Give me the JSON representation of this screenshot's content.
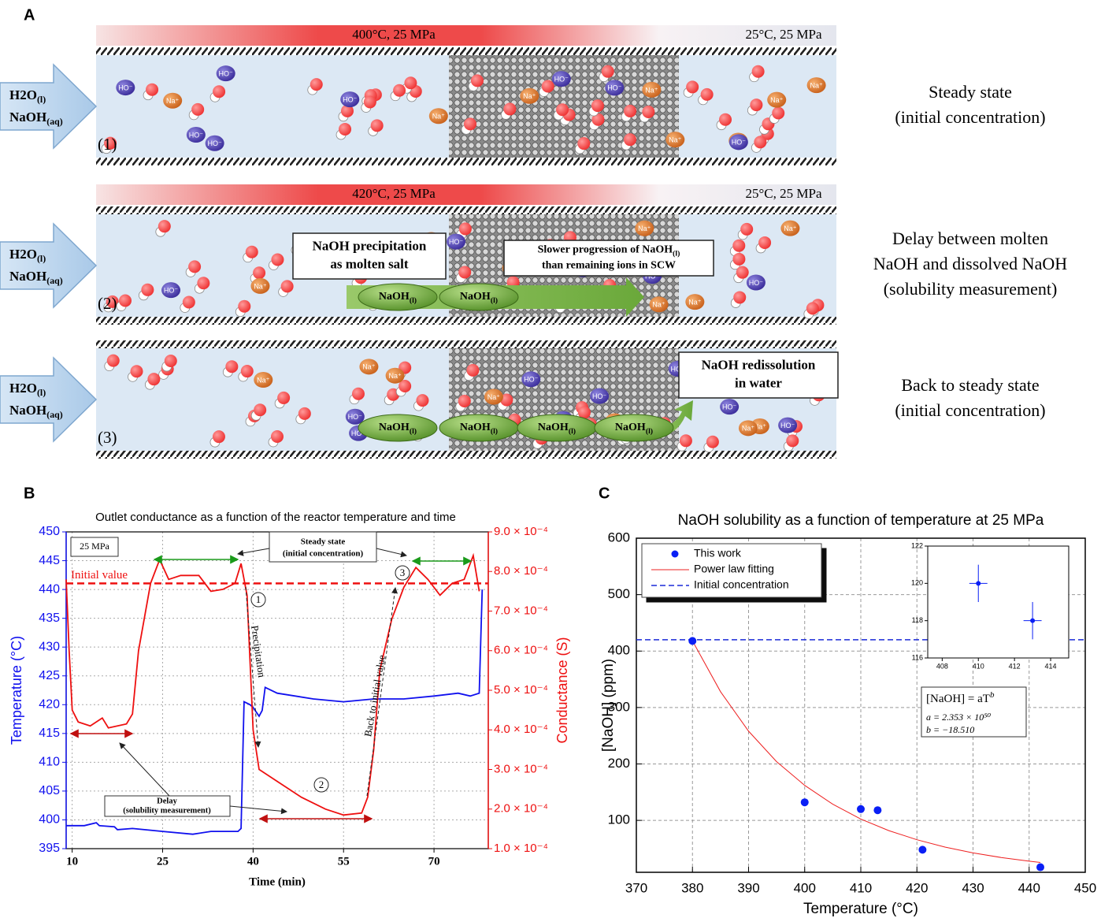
{
  "panel_a": {
    "label": "A",
    "ions": {
      "sodium": "Na⁺",
      "hydroxide": "HO⁻"
    },
    "inlet": [
      {
        "formula": "H2O",
        "phase": "(l)"
      },
      {
        "formula": "NaOH",
        "phase": "(aq)"
      }
    ],
    "molten": {
      "formula": "NaOH",
      "phase": "(l)"
    },
    "rows": [
      {
        "number": "(1)",
        "hot": "400°C, 25 MPa",
        "cold": "25°C, 25 MPa",
        "description": [
          "Steady state",
          "(initial concentration)"
        ]
      },
      {
        "number": "(2)",
        "hot": "420°C, 25 MPa",
        "cold": "25°C, 25 MPa",
        "description": [
          "Delay between molten",
          "NaOH and dissolved NaOH",
          "(solubility measurement)"
        ],
        "callouts": [
          {
            "lines": [
              {
                "text": "NaOH precipitation"
              },
              {
                "text": "as molten salt"
              }
            ]
          },
          {
            "lines": [
              {
                "text": "Slower progression of NaOH",
                "sub": "(l)"
              },
              {
                "text": "than remaining ions in SCW"
              }
            ]
          }
        ]
      },
      {
        "number": "(3)",
        "description": [
          "Back to steady state",
          "(initial concentration)"
        ],
        "callouts": [
          {
            "lines": [
              {
                "text": "NaOH redissolution"
              },
              {
                "text": "in water"
              }
            ]
          }
        ]
      }
    ]
  },
  "chart_data": [
    {
      "label": "B",
      "type": "line",
      "title": "Outlet conductance as a function of the reactor temperature and time",
      "xlabel": "Time (min)",
      "ylabel": "Temperature (°C)",
      "y2label": "Conductance (S)",
      "xlim": [
        9,
        79
      ],
      "xticks": [
        10,
        25,
        40,
        55,
        70
      ],
      "ylim": [
        395,
        450
      ],
      "yticks": [
        395,
        400,
        405,
        410,
        415,
        420,
        425,
        430,
        435,
        440,
        445,
        450
      ],
      "y2lim": [
        0.0001,
        0.0009
      ],
      "y2ticks": [
        {
          "value": 0.0001,
          "label": "1.0 × 10⁻⁴"
        },
        {
          "value": 0.0002,
          "label": "2.0 × 10⁻⁴"
        },
        {
          "value": 0.0003,
          "label": "3.0 × 10⁻⁴"
        },
        {
          "value": 0.0004,
          "label": "4.0 × 10⁻⁴"
        },
        {
          "value": 0.0005,
          "label": "5.0 × 10⁻⁴"
        },
        {
          "value": 0.0006,
          "label": "6.0 × 10⁻⁴"
        },
        {
          "value": 0.0007,
          "label": "7.0 × 10⁻⁴"
        },
        {
          "value": 0.0008,
          "label": "8.0 × 10⁻⁴"
        },
        {
          "value": 0.0009,
          "label": "9.0 × 10⁻⁴"
        }
      ],
      "grid": true,
      "series": [
        {
          "color": "#1010ee",
          "axis": "y",
          "x": [
            9,
            12,
            14,
            14.5,
            17,
            17.5,
            20,
            25,
            30,
            33,
            37.5,
            38,
            38.5,
            39.5,
            40,
            41,
            41.5,
            42,
            44,
            50,
            55,
            60,
            65,
            70,
            74,
            76,
            77.5,
            78
          ],
          "values": [
            399,
            399,
            399.5,
            399,
            398.8,
            398.3,
            398.5,
            398,
            397.5,
            398,
            398,
            398.5,
            420.5,
            420,
            419.5,
            418,
            419,
            423,
            422,
            421,
            420.5,
            421,
            421,
            421.5,
            422,
            421.5,
            422,
            440
          ]
        },
        {
          "color": "#ee1010",
          "axis": "y2",
          "x": [
            9,
            9.5,
            10,
            11,
            13,
            15,
            16,
            19,
            20,
            21,
            23,
            24.5,
            26,
            28,
            31,
            33,
            35,
            37,
            38,
            39,
            40,
            41,
            44,
            48,
            52,
            55,
            58,
            59,
            60,
            61,
            63,
            65,
            67,
            69,
            71,
            73,
            75,
            76.5,
            77.5
          ],
          "values": [
            0.00078,
            0.0006,
            0.00045,
            0.00042,
            0.00041,
            0.00043,
            0.000405,
            0.000415,
            0.00044,
            0.0006,
            0.00077,
            0.00083,
            0.00078,
            0.00079,
            0.00079,
            0.00075,
            0.000755,
            0.00077,
            0.00082,
            0.00074,
            0.0004,
            0.0003,
            0.00027,
            0.00023,
            0.0002,
            0.000185,
            0.00019,
            0.00023,
            0.00035,
            0.00055,
            0.00068,
            0.00076,
            0.00081,
            0.00078,
            0.00074,
            0.00077,
            0.00078,
            0.00084,
            0.00075
          ]
        }
      ],
      "reference": {
        "label": "Initial value",
        "value": 0.00077,
        "axis": "y2",
        "color": "#ee1010"
      },
      "annotations": {
        "pressure": "25 MPa",
        "steady_state": [
          "Steady state",
          "(initial concentration)"
        ],
        "delay": [
          "Delay",
          "(solubility measurement)"
        ],
        "precipitation": "Precipitation",
        "back": "Back to initial value",
        "steps": [
          "1",
          "2",
          "3"
        ]
      }
    },
    {
      "label": "C",
      "type": "scatter",
      "title": "NaOH solubility as a function of temperature at 25 MPa",
      "xlabel": "Temperature (°C)",
      "ylabel": "[NaOH] (ppm)",
      "xlim": [
        370,
        450
      ],
      "xticks": [
        370,
        380,
        390,
        400,
        410,
        420,
        430,
        440,
        450
      ],
      "ylim": [
        8,
        600
      ],
      "yticks": [
        100,
        200,
        300,
        400,
        500,
        600
      ],
      "grid": true,
      "legend": "upper left",
      "series": [
        {
          "name": "This work",
          "style": "points",
          "color": "#0a1ff5",
          "x": [
            380,
            400,
            410,
            413,
            421,
            442
          ],
          "values": [
            418,
            132,
            120,
            118,
            48,
            17
          ]
        },
        {
          "name": "Power law fitting",
          "style": "line",
          "color": "#ee2020",
          "x": [
            380,
            385,
            390,
            395,
            400,
            405,
            410,
            415,
            420,
            425,
            430,
            435,
            440,
            442
          ],
          "values": [
            418,
            328,
            258,
            204,
            162,
            128.6,
            102.4,
            81.8,
            65.6,
            52.7,
            42.4,
            34.2,
            27.7,
            25.5
          ]
        },
        {
          "name": "Initial concentration",
          "style": "dashed",
          "color": "#1a2ad8",
          "x": [
            370,
            450
          ],
          "values": [
            420,
            420
          ]
        }
      ],
      "equation": {
        "formula": "[NaOH] = aT",
        "exponent": "b",
        "a": "a = 2.353 × 10⁵⁰",
        "b": "b = −18.510"
      },
      "inset": {
        "type": "scatter",
        "xlim": [
          407.2,
          415
        ],
        "xticks": [
          408,
          410,
          412,
          414
        ],
        "ylim": [
          116,
          122
        ],
        "yticks": [
          116,
          118,
          120,
          122
        ],
        "color": "#0a1ff5",
        "x": [
          410,
          413
        ],
        "values": [
          120,
          118
        ],
        "xerr": [
          0.5,
          0.5
        ],
        "yerr": [
          1,
          1
        ]
      }
    }
  ]
}
